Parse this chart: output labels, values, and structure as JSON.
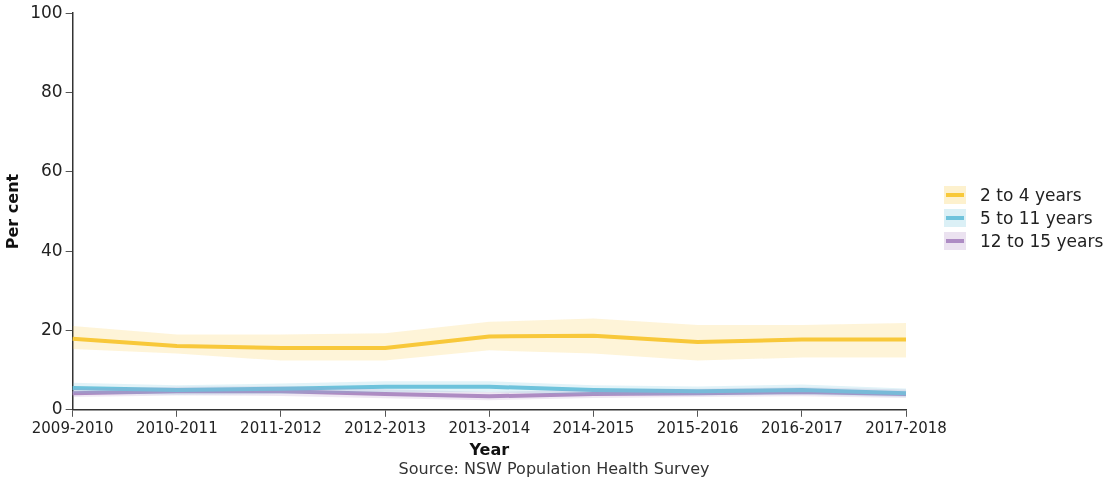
{
  "chart_data": {
    "type": "line",
    "xlabel": "Year",
    "ylabel": "Per cent",
    "categories": [
      "2009-2010",
      "2010-2011",
      "2011-2012",
      "2012-2013",
      "2013-2014",
      "2014-2015",
      "2015-2016",
      "2016-2017",
      "2017-2018"
    ],
    "series": [
      {
        "name": "2 to 4 years",
        "color": "#f8c93a",
        "values": [
          17.9,
          16.1,
          15.6,
          15.6,
          18.5,
          18.7,
          17.1,
          17.7,
          17.7
        ],
        "lower": [
          15.3,
          14.2,
          12.4,
          12.4,
          15.0,
          14.2,
          12.4,
          13.2,
          13.2
        ],
        "upper": [
          21.1,
          19.0,
          19.0,
          19.3,
          22.2,
          23.0,
          21.4,
          21.4,
          21.9
        ]
      },
      {
        "name": "5 to 11 years",
        "color": "#6fc3dc",
        "values": [
          5.5,
          5.0,
          5.3,
          5.8,
          5.8,
          5.0,
          4.7,
          5.0,
          4.2
        ],
        "lower": [
          4.2,
          3.8,
          4.0,
          4.4,
          4.4,
          3.8,
          3.6,
          3.8,
          3.2
        ],
        "upper": [
          6.8,
          6.2,
          6.6,
          7.2,
          7.2,
          6.2,
          5.9,
          6.4,
          5.4
        ]
      },
      {
        "name": "12 to 15 years",
        "color": "#ae8cc4",
        "values": [
          4.2,
          4.7,
          4.7,
          4.0,
          3.4,
          4.0,
          4.2,
          4.5,
          4.0
        ],
        "lower": [
          3.2,
          3.6,
          3.5,
          2.9,
          2.4,
          3.0,
          3.2,
          3.4,
          3.0
        ],
        "upper": [
          5.3,
          5.8,
          6.0,
          5.2,
          4.5,
          5.1,
          5.3,
          5.7,
          5.1
        ]
      }
    ],
    "ylim": [
      0,
      100
    ],
    "yticks": [
      0,
      20,
      40,
      60,
      80,
      100
    ],
    "grid": false,
    "legend": "right",
    "marker": "none",
    "line_style": "solid",
    "annotations": [
      "Source: NSW Population Health Survey"
    ]
  }
}
